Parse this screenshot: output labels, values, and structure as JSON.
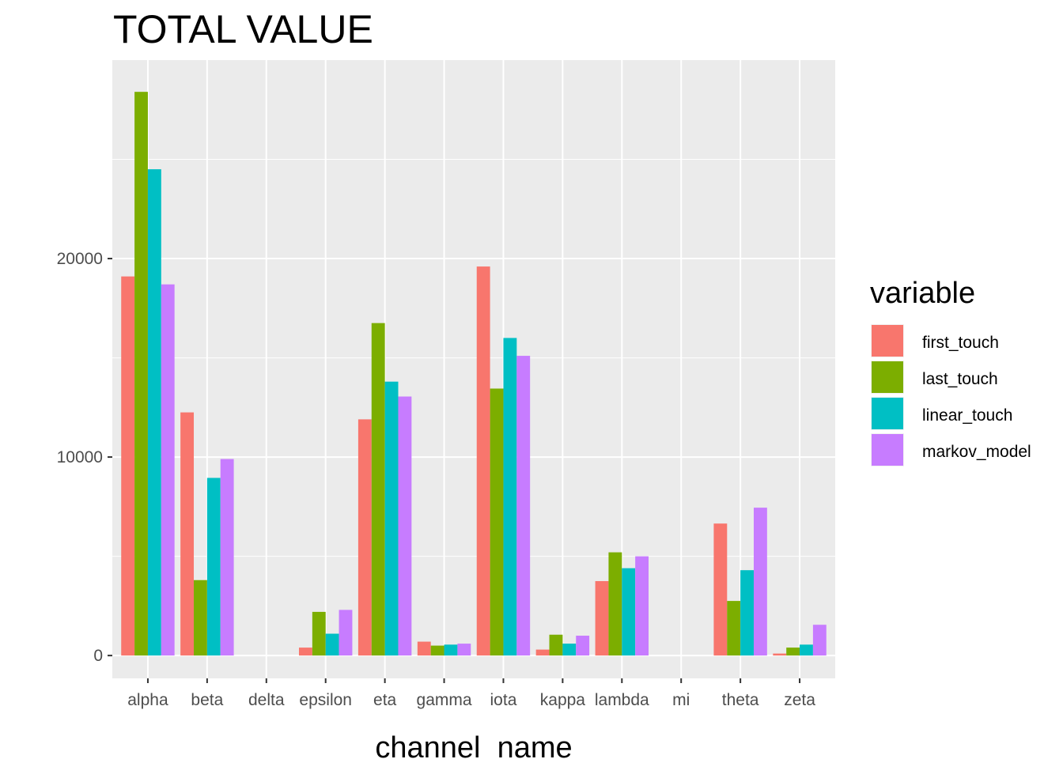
{
  "chart_data": {
    "type": "bar",
    "title": "TOTAL VALUE",
    "xlabel": "channel_name",
    "ylabel": "",
    "categories": [
      "alpha",
      "beta",
      "delta",
      "epsilon",
      "eta",
      "gamma",
      "iota",
      "kappa",
      "lambda",
      "mi",
      "theta",
      "zeta"
    ],
    "ylim": [
      -1150,
      30000
    ],
    "yticks": [
      0,
      10000,
      20000
    ],
    "ytick_labels": [
      "0",
      "10000",
      "20000"
    ],
    "grid": true,
    "legend": {
      "title": "variable",
      "position": "right"
    },
    "series": [
      {
        "name": "first_touch",
        "color": "#F8766D",
        "values": [
          19100,
          12250,
          0,
          400,
          11900,
          700,
          19600,
          300,
          3750,
          0,
          6650,
          100
        ]
      },
      {
        "name": "last_touch",
        "color": "#7CAE00",
        "values": [
          28400,
          3800,
          0,
          2200,
          16750,
          500,
          13450,
          1050,
          5200,
          0,
          2750,
          400
        ]
      },
      {
        "name": "linear_touch",
        "color": "#00BFC4",
        "values": [
          24500,
          8950,
          0,
          1100,
          13800,
          550,
          16000,
          600,
          4400,
          0,
          4300,
          550
        ]
      },
      {
        "name": "markov_model",
        "color": "#C77CFF",
        "values": [
          18700,
          9900,
          0,
          2300,
          13050,
          600,
          15100,
          1000,
          5000,
          0,
          7450,
          1550
        ]
      }
    ]
  }
}
